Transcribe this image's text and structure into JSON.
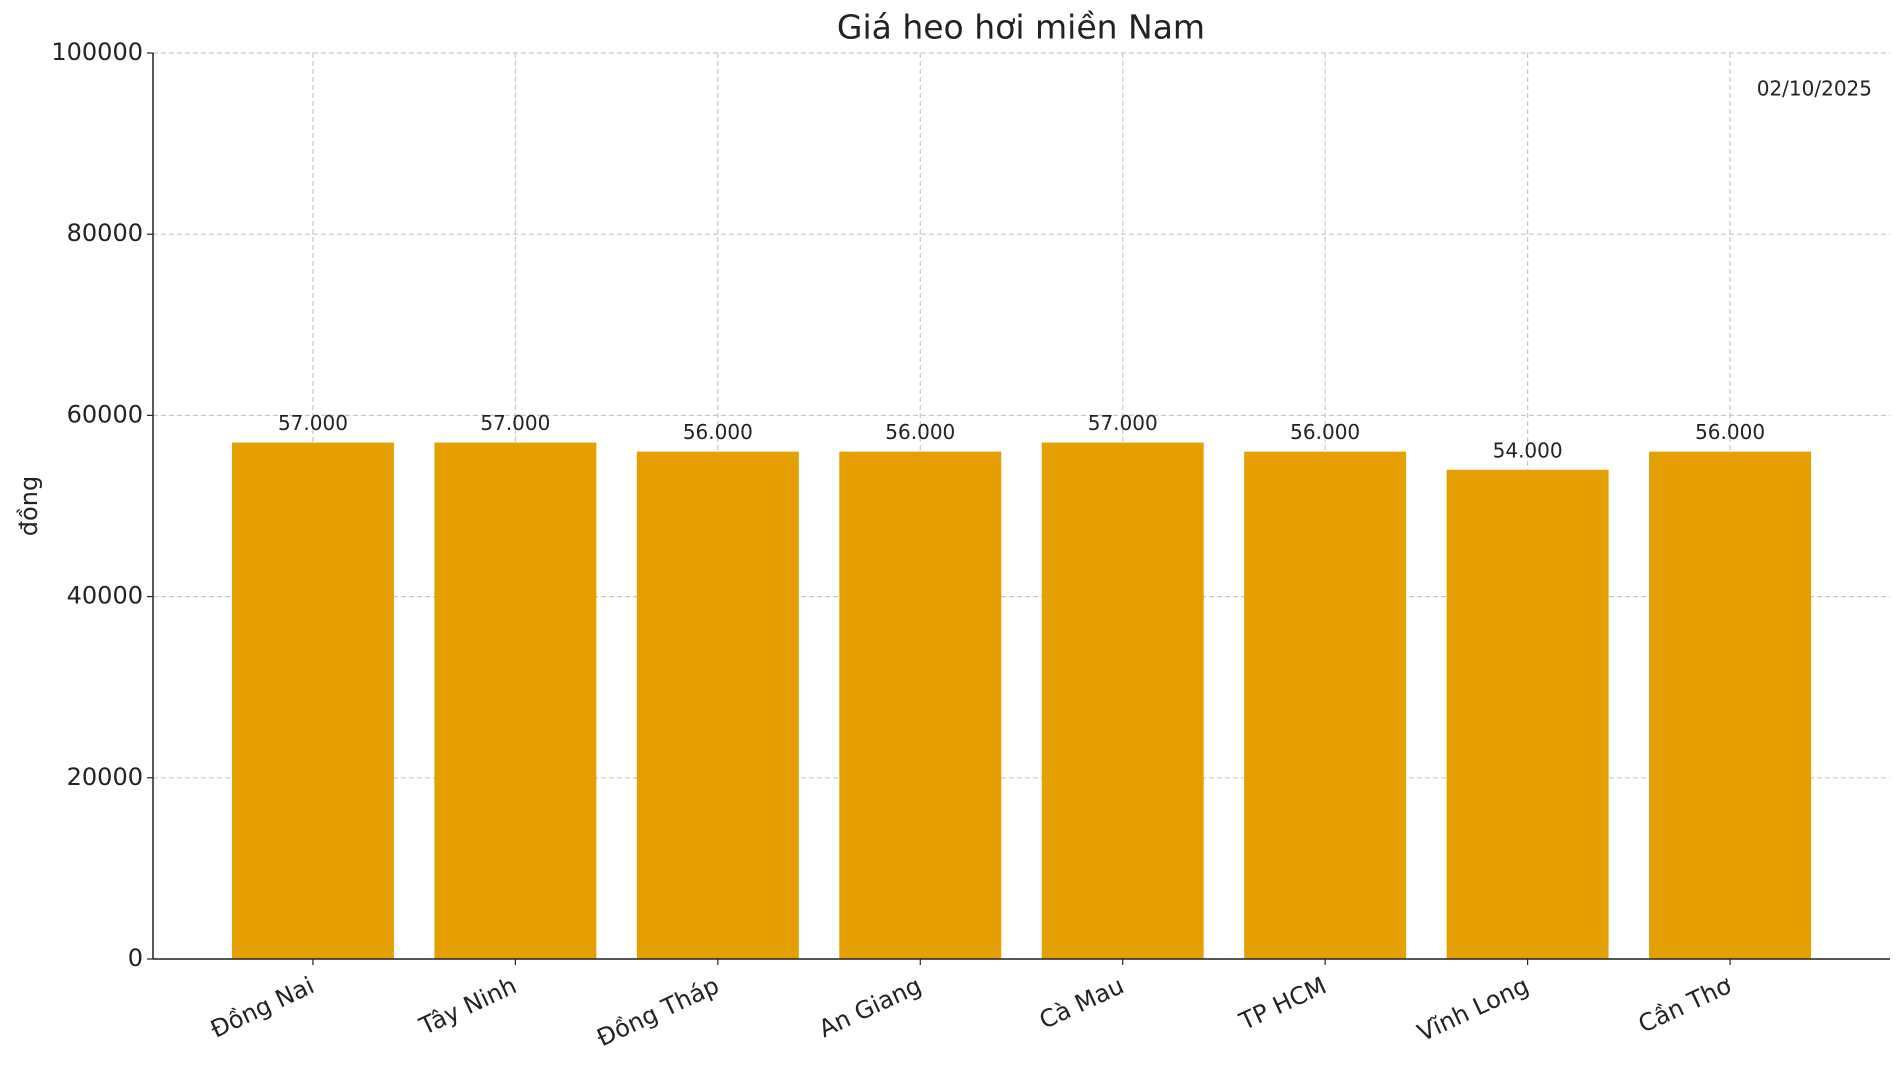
{
  "chart_data": {
    "type": "bar",
    "title": "Giá heo hơi miền Nam",
    "ylabel": "đồng",
    "annotation": "02/10/2025",
    "categories": [
      "Đồng Nai",
      "Tây Ninh",
      "Đồng Tháp",
      "An Giang",
      "Cà Mau",
      "TP HCM",
      "Vĩnh Long",
      "Cần Thơ"
    ],
    "values": [
      57000,
      57000,
      56000,
      56000,
      57000,
      56000,
      54000,
      56000
    ],
    "value_labels": [
      "57.000",
      "57.000",
      "56.000",
      "56.000",
      "57.000",
      "56.000",
      "54.000",
      "56.000"
    ],
    "color": "#e69f00",
    "ylim": [
      0,
      100000
    ],
    "yticks": [
      0,
      20000,
      40000,
      60000,
      80000,
      100000
    ],
    "grid": true
  }
}
